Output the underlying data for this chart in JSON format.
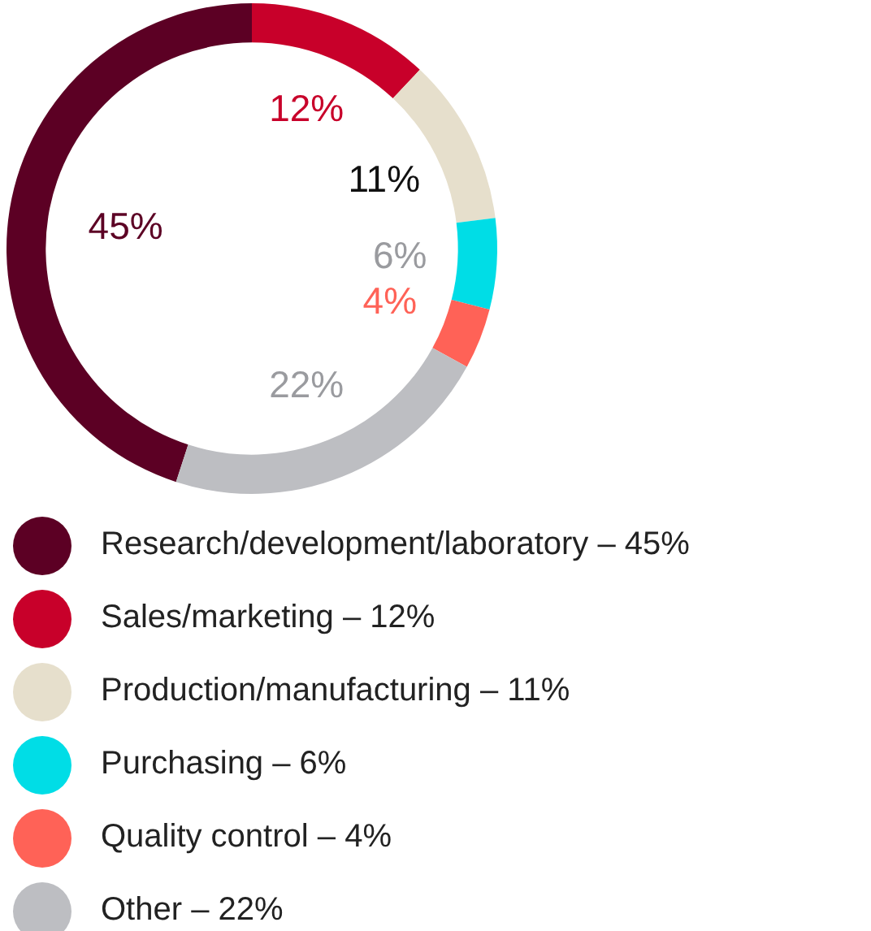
{
  "chart_data": {
    "type": "donut",
    "categories": [
      "Research/development/laboratory",
      "Sales/marketing",
      "Production/manufacturing",
      "Purchasing",
      "Quality control",
      "Other"
    ],
    "values": [
      45,
      12,
      11,
      6,
      4,
      22
    ],
    "value_labels": [
      "45%",
      "12%",
      "11%",
      "6%",
      "4%",
      "22%"
    ],
    "colors": [
      "#5c0024",
      "#c8002a",
      "#e6dfcc",
      "#00dde6",
      "#ff6257",
      "#bdbec2"
    ],
    "legend": "bottom"
  }
}
